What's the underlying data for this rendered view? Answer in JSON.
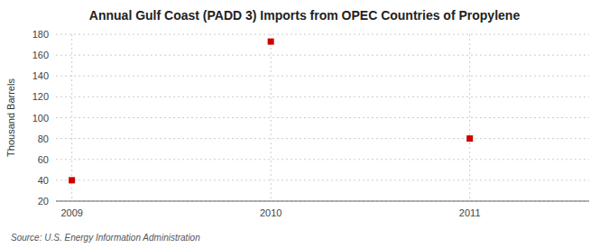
{
  "chart_data": {
    "type": "scatter",
    "title": "Annual Gulf Coast (PADD 3) Imports from OPEC Countries of Propylene",
    "y_label": "Thousand Barrels",
    "source": "Source: U.S. Energy Information Administration",
    "x": [
      2009,
      2010,
      2011
    ],
    "values": [
      40,
      173,
      80
    ],
    "color": "#cc0000",
    "marker": "square",
    "xlim": [
      2008.92,
      2011.6
    ],
    "xticks": [
      2009,
      2010,
      2011
    ],
    "ylim": [
      20,
      180
    ],
    "yticks": [
      20,
      40,
      60,
      80,
      100,
      120,
      140,
      160,
      180
    ],
    "grid": true
  }
}
